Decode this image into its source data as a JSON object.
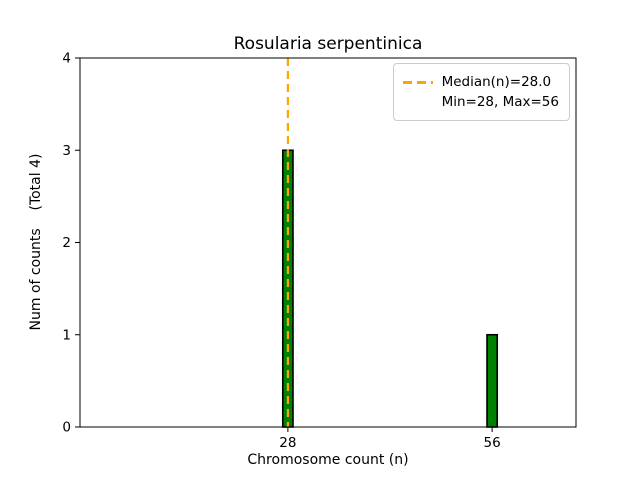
{
  "title": "Rosularia serpentinica",
  "chart_data": {
    "type": "bar",
    "title": "Rosularia serpentinica",
    "xlabel": "Chromosome count (n)",
    "ylabel": "Num of counts    (Total 4)",
    "bars": [
      {
        "x": 28,
        "count": 3
      },
      {
        "x": 56,
        "count": 1
      }
    ],
    "bar_width": 1.4,
    "bar_color": "#008000",
    "bar_edge_color": "#000000",
    "median_line": {
      "x": 28,
      "style": "dashed",
      "color": "#FFA500"
    },
    "xlim": [
      -0.5,
      67.5
    ],
    "ylim": [
      0,
      4
    ],
    "xticks": [
      28,
      56
    ],
    "yticks": [
      0,
      1,
      2,
      3,
      4
    ],
    "grid": false,
    "legend_position": "upper right"
  },
  "legend": {
    "median_label": "Median(n)=28.0",
    "minmax_label": "Min=28, Max=56"
  }
}
